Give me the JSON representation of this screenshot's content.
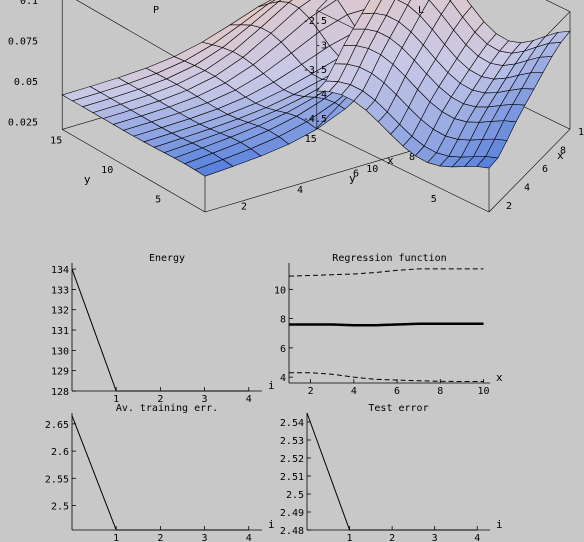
{
  "chart_data": [
    {
      "type": "surface3d",
      "title": "P",
      "xlabel": "x",
      "ylabel": "y",
      "x_ticks": [
        "2",
        "4",
        "6",
        "8",
        "10"
      ],
      "y_ticks": [
        "5",
        "10",
        "15"
      ],
      "z_ticks": [
        "0.1",
        "0.075",
        "0.05",
        "0.025"
      ],
      "xlim": [
        1,
        10
      ],
      "ylim": [
        1,
        15
      ],
      "zlim": [
        0.02,
        0.105
      ],
      "grid": {
        "nx": 10,
        "ny": 15
      },
      "colormap": "mathematica-lighting"
    },
    {
      "type": "surface3d",
      "title": "L",
      "xlabel": "x",
      "ylabel": "y",
      "x_ticks": [
        "2",
        "4",
        "6",
        "8",
        "10"
      ],
      "y_ticks": [
        "5",
        "10",
        "15"
      ],
      "z_ticks": [
        "-2.5",
        "-3",
        "-3.5",
        "-4",
        "-4.5"
      ],
      "xlim": [
        1,
        10
      ],
      "ylim": [
        1,
        15
      ],
      "zlim": [
        -4.7,
        -2.3
      ],
      "grid": {
        "nx": 10,
        "ny": 15
      },
      "colormap": "mathematica-lighting"
    },
    {
      "type": "line",
      "title": "Energy",
      "xlabel": "i",
      "ylabel": "",
      "xlim": [
        0,
        4.3
      ],
      "ylim": [
        128,
        134.3
      ],
      "x_ticks": [
        1,
        2,
        3,
        4
      ],
      "y_ticks": [
        128,
        129,
        130,
        131,
        132,
        133,
        134
      ],
      "series": [
        {
          "x": [
            0,
            1,
            2,
            3,
            4
          ],
          "y": [
            134,
            128,
            128,
            128,
            128
          ]
        }
      ]
    },
    {
      "type": "line",
      "title": "Regression function",
      "xlabel": "x",
      "ylabel": "",
      "xlim": [
        1,
        10.3
      ],
      "ylim": [
        3.6,
        11.8
      ],
      "x_ticks": [
        2,
        4,
        6,
        8,
        10
      ],
      "y_ticks": [
        4,
        6,
        8,
        10
      ],
      "series": [
        {
          "style": "dashed",
          "x": [
            1,
            2,
            3,
            4,
            5,
            6,
            7,
            8,
            9,
            10
          ],
          "y": [
            10.9,
            10.95,
            11.0,
            11.05,
            11.15,
            11.3,
            11.4,
            11.4,
            11.4,
            11.4
          ]
        },
        {
          "style": "solid-thick",
          "x": [
            1,
            2,
            3,
            4,
            5,
            6,
            7,
            8,
            9,
            10
          ],
          "y": [
            7.6,
            7.6,
            7.6,
            7.55,
            7.55,
            7.6,
            7.65,
            7.65,
            7.65,
            7.65
          ]
        },
        {
          "style": "dashed",
          "x": [
            1,
            2,
            3,
            4,
            5,
            6,
            7,
            8,
            9,
            10
          ],
          "y": [
            4.3,
            4.3,
            4.2,
            4.0,
            3.85,
            3.8,
            3.75,
            3.72,
            3.7,
            3.7
          ]
        }
      ]
    },
    {
      "type": "line",
      "title": "Av. training err.",
      "xlabel": "i",
      "ylabel": "",
      "xlim": [
        0,
        4.3
      ],
      "ylim": [
        2.455,
        2.67
      ],
      "x_ticks": [
        1,
        2,
        3,
        4
      ],
      "y_ticks": [
        2.5,
        2.55,
        2.6,
        2.65
      ],
      "series": [
        {
          "x": [
            0,
            1,
            2,
            3,
            4
          ],
          "y": [
            2.665,
            2.455,
            2.455,
            2.455,
            2.455
          ]
        }
      ]
    },
    {
      "type": "line",
      "title": "Test error",
      "xlabel": "i",
      "ylabel": "",
      "xlim": [
        0,
        4.3
      ],
      "ylim": [
        2.48,
        2.545
      ],
      "x_ticks": [
        1,
        2,
        3,
        4
      ],
      "y_ticks": [
        2.48,
        2.49,
        2.5,
        2.51,
        2.52,
        2.53,
        2.54
      ],
      "series": [
        {
          "x": [
            0,
            1,
            2,
            3,
            4
          ],
          "y": [
            2.545,
            2.48,
            2.48,
            2.48,
            2.48
          ]
        }
      ]
    }
  ]
}
